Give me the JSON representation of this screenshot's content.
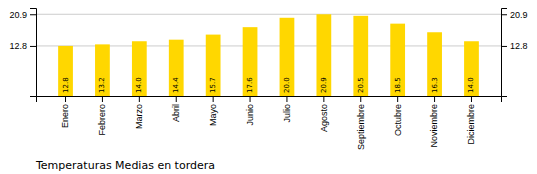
{
  "chart_data": {
    "type": "bar",
    "title": "Temperaturas Medias en tordera",
    "categories": [
      "Enero",
      "Febrero",
      "Marzo",
      "Abril",
      "Mayo",
      "Junio",
      "Julio",
      "Agosto",
      "Septiembre",
      "Octubre",
      "Noviembre",
      "Diciembre"
    ],
    "values": [
      12.8,
      13.2,
      14.0,
      14.4,
      15.7,
      17.6,
      20.0,
      20.9,
      20.5,
      18.5,
      16.3,
      14.0
    ],
    "value_labels": [
      "12.8",
      "13.2",
      "14.0",
      "14.4",
      "15.7",
      "17.6",
      "20.0",
      "20.9",
      "20.5",
      "18.5",
      "16.3",
      "14.0"
    ],
    "color": "#FFD700",
    "ylim": [
      0,
      22.5
    ],
    "yticks": [
      12.8,
      20.9
    ],
    "y2lim": [
      0,
      22.5
    ],
    "y2ticks": [
      12.8,
      20.9
    ],
    "grid": true,
    "data_labels": true
  }
}
